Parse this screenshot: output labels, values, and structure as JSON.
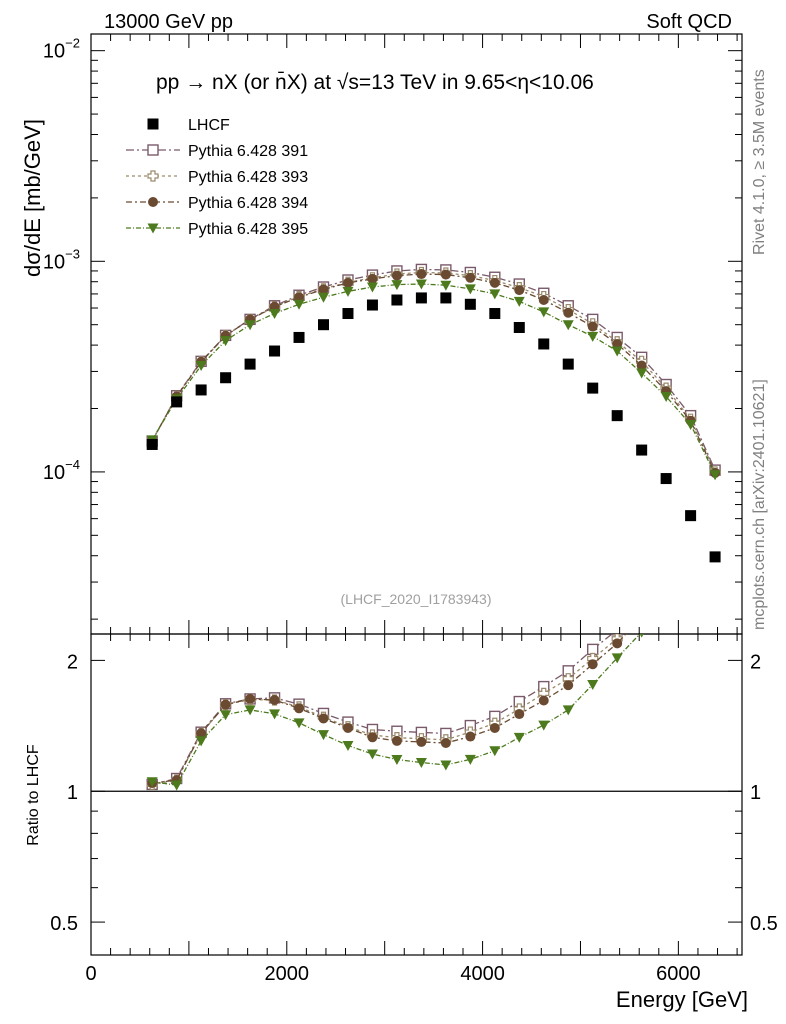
{
  "header": {
    "left": "13000 GeV pp",
    "right": "Soft QCD"
  },
  "side": {
    "rivet": "Rivet 4.1.0, ≥ 3.5M events",
    "mcplots": "mcplots.cern.ch [arXiv:2401.10621]"
  },
  "watermark": "(LHCF_2020_I1783943)",
  "chart_data": {
    "type": "scatter",
    "title": "pp → nX (or n̄X) at √s=13 TeV in 9.65<η<10.06",
    "xlabel": "Energy [GeV]",
    "ylabel": "dσ/dE [mb/GeV]",
    "ratio_ylabel": "Ratio to LHCF",
    "xlim": [
      0,
      6650
    ],
    "ylim": [
      1.7e-05,
      0.012
    ],
    "yscale": "log",
    "ratio_ylim": [
      0.42,
      2.3
    ],
    "ratio_yscale": "log",
    "x_ticks": [
      0,
      2000,
      4000,
      6000
    ],
    "x_tick_labels": [
      "0",
      "2000",
      "4000",
      "6000"
    ],
    "y_tick_labels": [
      {
        "mant": "10",
        "exp": "−2",
        "value": 0.01
      },
      {
        "mant": "10",
        "exp": "−3",
        "value": 0.001
      },
      {
        "mant": "10",
        "exp": "−4",
        "value": 0.0001
      }
    ],
    "ratio_ticks": [
      {
        "value": 2,
        "label": "2"
      },
      {
        "value": 1,
        "label": "1"
      },
      {
        "value": 0.5,
        "label": "0.5"
      }
    ],
    "x": [
      625,
      875,
      1125,
      1375,
      1625,
      1875,
      2125,
      2375,
      2625,
      2875,
      3125,
      3375,
      3625,
      3875,
      4125,
      4375,
      4625,
      4875,
      5125,
      5375,
      5625,
      5875,
      6125,
      6375
    ],
    "data": {
      "name": "LHCF",
      "values": [
        0.000135,
        0.000215,
        0.000245,
        0.00028,
        0.000325,
        0.000375,
        0.000435,
        0.0005,
        0.000565,
        0.00062,
        0.000655,
        0.00067,
        0.00067,
        0.000625,
        0.000565,
        0.000485,
        0.000405,
        0.000325,
        0.00025,
        0.000185,
        0.000127,
        9.3e-05,
        6.2e-05,
        3.95e-05
      ]
    },
    "series": [
      {
        "name": "Pythia 6.428 391",
        "color": "#7a5a6a",
        "marker": "open-square",
        "dash": "8,3,2,3",
        "values": [
          0.00014,
          0.00023,
          0.000335,
          0.000445,
          0.00053,
          0.000615,
          0.00069,
          0.000755,
          0.000815,
          0.00086,
          0.0009,
          0.000915,
          0.00091,
          0.000885,
          0.00084,
          0.00078,
          0.000705,
          0.000615,
          0.00053,
          0.000435,
          0.00035,
          0.00026,
          0.000185,
          0.000102
        ]
      },
      {
        "name": "Pythia 6.428 393",
        "color": "#9a8a6a",
        "marker": "open-cross",
        "dash": "3,3",
        "values": [
          0.00014,
          0.000228,
          0.000333,
          0.000443,
          0.000528,
          0.000608,
          0.00068,
          0.00074,
          0.000795,
          0.000835,
          0.00087,
          0.000885,
          0.00088,
          0.000855,
          0.00081,
          0.00075,
          0.00068,
          0.00059,
          0.000505,
          0.000415,
          0.000335,
          0.00025,
          0.000178,
          0.0001
        ]
      },
      {
        "name": "Pythia 6.428 394",
        "color": "#6b4a32",
        "marker": "filled-circle",
        "dash": "6,3,2,3",
        "values": [
          0.000141,
          0.000228,
          0.000333,
          0.000443,
          0.00053,
          0.000608,
          0.000675,
          0.000735,
          0.00079,
          0.000825,
          0.000855,
          0.00087,
          0.000865,
          0.000835,
          0.00079,
          0.00073,
          0.000655,
          0.00057,
          0.00049,
          0.000405,
          0.00032,
          0.000242,
          0.000175,
          9.9e-05
        ]
      },
      {
        "name": "Pythia 6.428 395",
        "color": "#4c7a1c",
        "marker": "filled-triangle-down",
        "dash": "5,2,1,2",
        "values": [
          0.000142,
          0.000222,
          0.00032,
          0.00042,
          0.0005,
          0.000565,
          0.000625,
          0.000675,
          0.00072,
          0.000755,
          0.000775,
          0.00078,
          0.00077,
          0.00074,
          0.0007,
          0.000645,
          0.000575,
          0.0005,
          0.00044,
          0.000375,
          0.000295,
          0.000228,
          0.000168,
          9.7e-05
        ]
      }
    ]
  }
}
